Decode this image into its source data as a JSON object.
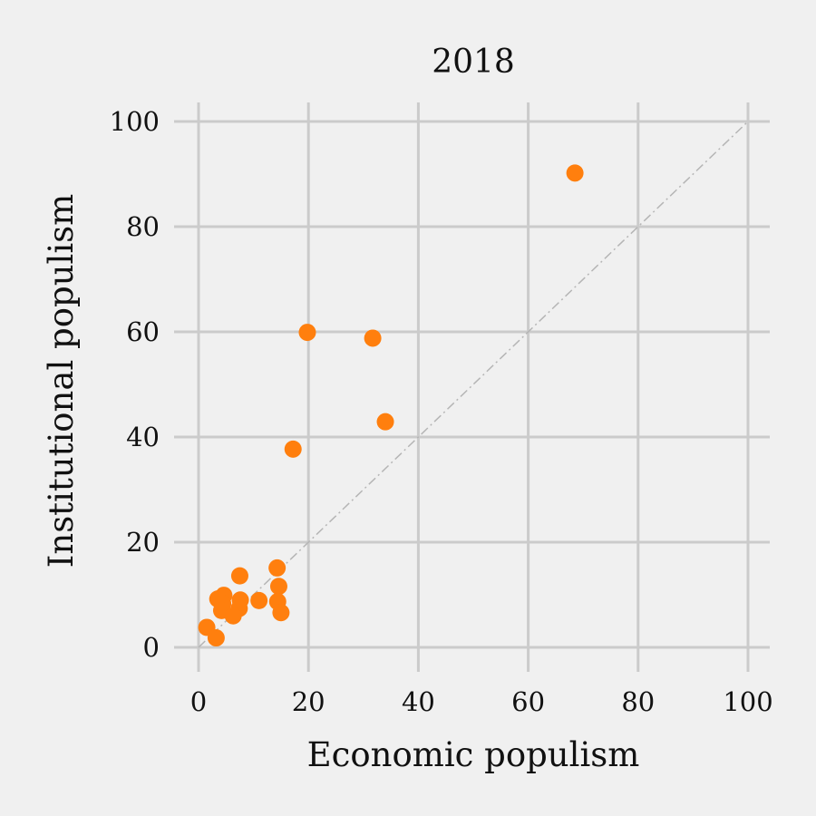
{
  "chart_data": {
    "type": "scatter",
    "title": "2018",
    "xlabel": "Economic populism",
    "ylabel": "Institutional populism",
    "xlim": [
      0,
      100
    ],
    "ylim": [
      0,
      100
    ],
    "xticks": [
      "0",
      "20",
      "40",
      "60",
      "80",
      "100"
    ],
    "yticks": [
      "0",
      "20",
      "40",
      "60",
      "80",
      "100"
    ],
    "grid": true,
    "reference_line": "y = x",
    "point_color": "#ff7f0e",
    "points": [
      {
        "x": 68.5,
        "y": 90.2
      },
      {
        "x": 19.8,
        "y": 59.9
      },
      {
        "x": 31.7,
        "y": 58.8
      },
      {
        "x": 34.0,
        "y": 42.9
      },
      {
        "x": 17.2,
        "y": 37.7
      },
      {
        "x": 14.3,
        "y": 15.1
      },
      {
        "x": 7.5,
        "y": 13.6
      },
      {
        "x": 14.6,
        "y": 11.6
      },
      {
        "x": 4.6,
        "y": 9.9
      },
      {
        "x": 3.5,
        "y": 9.2
      },
      {
        "x": 7.6,
        "y": 9.0
      },
      {
        "x": 11.0,
        "y": 8.9
      },
      {
        "x": 14.4,
        "y": 8.7
      },
      {
        "x": 4.4,
        "y": 8.3
      },
      {
        "x": 7.4,
        "y": 7.4
      },
      {
        "x": 4.2,
        "y": 7.0
      },
      {
        "x": 15.0,
        "y": 6.6
      },
      {
        "x": 6.3,
        "y": 6.0
      },
      {
        "x": 1.5,
        "y": 3.8
      },
      {
        "x": 3.2,
        "y": 1.8
      }
    ]
  }
}
